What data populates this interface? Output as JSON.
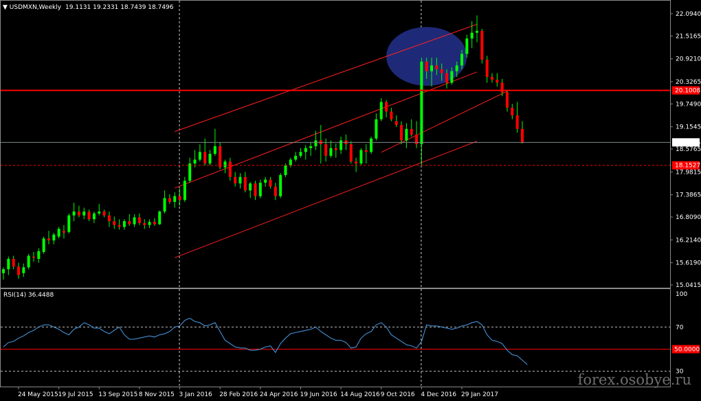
{
  "header": {
    "symbol": "USDMXN,Weekly",
    "ohlc": "19.1131 19.2331 18.7439 18.7496"
  },
  "rsi_header": "RSI(14) 36.4488",
  "watermark": "forex.osobye.ru",
  "colors": {
    "background": "#000000",
    "bull_candle": "#00ff00",
    "bear_candle": "#ff0000",
    "wick": "#00ff00",
    "channel": "#ff2020",
    "resistance": "#ff0000",
    "rsi_line": "#4a9ee8",
    "highlight_ellipse": "#1e2a78",
    "price_line": "#7f8c8d"
  },
  "chart_data": [
    {
      "type": "candlestick",
      "title": "USDMXN,Weekly",
      "y_ticks": [
        "22.0940",
        "21.5165",
        "20.9210",
        "20.3265",
        "19.7490",
        "19.1545",
        "18.5765",
        "17.9815",
        "17.3865",
        "16.8090",
        "16.2140",
        "15.6190",
        "15.0415"
      ],
      "ylim": [
        15.0415,
        22.094
      ],
      "x_ticks": [
        "24 May 2015",
        "19 Jul 2015",
        "13 Sep 2015",
        "8 Nov 2015",
        "3 Jan 2016",
        "28 Feb 2016",
        "24 Apr 2016",
        "19 Jun 2016",
        "14 Aug 2016",
        "9 Oct 2016",
        "4 Dec 2016",
        "29 Jan 2017"
      ],
      "price_labels": {
        "current": "18.7496",
        "resistance": "20.1008",
        "dashed_level": "18.1527"
      },
      "levels": {
        "current": 18.7496,
        "resistance": 20.1008,
        "dashed_level": 18.1527
      },
      "channel": {
        "upper": [
          [
            "27 Dec 2015",
            19.03
          ],
          [
            "19 Feb 2017",
            21.82
          ]
        ],
        "middle": [
          [
            "27 Dec 2015",
            17.56
          ],
          [
            "19 Feb 2017",
            20.58
          ]
        ],
        "lower": [
          [
            "27 Dec 2015",
            15.75
          ],
          [
            "19 Feb 2017",
            18.78
          ]
        ],
        "breakout": [
          [
            "9 Oct 2016",
            18.49
          ],
          [
            "2 Apr 2017",
            20.08
          ]
        ]
      },
      "vertical_markers": [
        "3 Jan 2016",
        "4 Dec 2016"
      ],
      "highlight_ellipse": {
        "from": "16 Oct 2016",
        "to": "5 Feb 2017",
        "low": 20.22,
        "high": 21.75
      },
      "candles": [
        {
          "week": "3 May 2015",
          "o": 15.35,
          "h": 15.5,
          "l": 15.18,
          "c": 15.45
        },
        {
          "week": "10 May 2015",
          "o": 15.45,
          "h": 15.78,
          "l": 15.3,
          "c": 15.72
        },
        {
          "week": "17 May 2015",
          "o": 15.72,
          "h": 15.8,
          "l": 15.45,
          "c": 15.52
        },
        {
          "week": "24 May 2015",
          "o": 15.52,
          "h": 15.62,
          "l": 15.2,
          "c": 15.3
        },
        {
          "week": "31 May 2015",
          "o": 15.35,
          "h": 15.6,
          "l": 15.25,
          "c": 15.5
        },
        {
          "week": "7 Jun 2015",
          "o": 15.5,
          "h": 15.85,
          "l": 15.45,
          "c": 15.8
        },
        {
          "week": "14 Jun 2015",
          "o": 15.78,
          "h": 15.9,
          "l": 15.65,
          "c": 15.75
        },
        {
          "week": "21 Jun 2015",
          "o": 15.72,
          "h": 16.0,
          "l": 15.62,
          "c": 15.92
        },
        {
          "week": "28 Jun 2015",
          "o": 15.9,
          "h": 16.3,
          "l": 15.85,
          "c": 16.25
        },
        {
          "week": "5 Jul 2015",
          "o": 16.25,
          "h": 16.45,
          "l": 16.1,
          "c": 16.2
        },
        {
          "week": "12 Jul 2015",
          "o": 16.2,
          "h": 16.4,
          "l": 16.1,
          "c": 16.35
        },
        {
          "week": "19 Jul 2015",
          "o": 16.3,
          "h": 16.55,
          "l": 16.25,
          "c": 16.5
        },
        {
          "week": "26 Jul 2015",
          "o": 16.45,
          "h": 16.6,
          "l": 16.25,
          "c": 16.4
        },
        {
          "week": "2 Aug 2015",
          "o": 16.42,
          "h": 16.9,
          "l": 16.38,
          "c": 16.85
        },
        {
          "week": "9 Aug 2015",
          "o": 16.85,
          "h": 17.18,
          "l": 16.7,
          "c": 16.95
        },
        {
          "week": "16 Aug 2015",
          "o": 16.95,
          "h": 17.1,
          "l": 16.8,
          "c": 16.85
        },
        {
          "week": "23 Aug 2015",
          "o": 16.85,
          "h": 17.05,
          "l": 16.75,
          "c": 16.95
        },
        {
          "week": "30 Aug 2015",
          "o": 16.95,
          "h": 17.0,
          "l": 16.7,
          "c": 16.75
        },
        {
          "week": "6 Sep 2015",
          "o": 16.75,
          "h": 16.95,
          "l": 16.65,
          "c": 16.9
        },
        {
          "week": "13 Sep 2015",
          "o": 16.9,
          "h": 17.15,
          "l": 16.85,
          "c": 16.95
        },
        {
          "week": "20 Sep 2015",
          "o": 16.95,
          "h": 17.0,
          "l": 16.8,
          "c": 16.85
        },
        {
          "week": "27 Sep 2015",
          "o": 16.85,
          "h": 16.95,
          "l": 16.55,
          "c": 16.7
        },
        {
          "week": "4 Oct 2015",
          "o": 16.7,
          "h": 16.82,
          "l": 16.5,
          "c": 16.6
        },
        {
          "week": "11 Oct 2015",
          "o": 16.6,
          "h": 16.75,
          "l": 16.48,
          "c": 16.55
        },
        {
          "week": "18 Oct 2015",
          "o": 16.55,
          "h": 16.75,
          "l": 16.48,
          "c": 16.7
        },
        {
          "week": "25 Oct 2015",
          "o": 16.7,
          "h": 16.88,
          "l": 16.58,
          "c": 16.62
        },
        {
          "week": "1 Nov 2015",
          "o": 16.62,
          "h": 16.88,
          "l": 16.55,
          "c": 16.8
        },
        {
          "week": "8 Nov 2015",
          "o": 16.8,
          "h": 16.9,
          "l": 16.6,
          "c": 16.65
        },
        {
          "week": "15 Nov 2015",
          "o": 16.65,
          "h": 16.75,
          "l": 16.5,
          "c": 16.6
        },
        {
          "week": "22 Nov 2015",
          "o": 16.6,
          "h": 16.75,
          "l": 16.52,
          "c": 16.68
        },
        {
          "week": "29 Nov 2015",
          "o": 16.68,
          "h": 16.78,
          "l": 16.58,
          "c": 16.62
        },
        {
          "week": "6 Dec 2015",
          "o": 16.62,
          "h": 16.98,
          "l": 16.6,
          "c": 16.95
        },
        {
          "week": "13 Dec 2015",
          "o": 16.95,
          "h": 17.5,
          "l": 16.9,
          "c": 17.3
        },
        {
          "week": "20 Dec 2015",
          "o": 17.3,
          "h": 17.4,
          "l": 17.15,
          "c": 17.2
        },
        {
          "week": "27 Dec 2015",
          "o": 17.2,
          "h": 17.45,
          "l": 17.05,
          "c": 17.35
        },
        {
          "week": "3 Jan 2016",
          "o": 17.35,
          "h": 17.55,
          "l": 17.1,
          "c": 17.25
        },
        {
          "week": "10 Jan 2016",
          "o": 17.25,
          "h": 17.85,
          "l": 17.2,
          "c": 17.75
        },
        {
          "week": "17 Jan 2016",
          "o": 17.75,
          "h": 18.35,
          "l": 17.7,
          "c": 18.2
        },
        {
          "week": "24 Jan 2016",
          "o": 18.2,
          "h": 18.55,
          "l": 18.1,
          "c": 18.3
        },
        {
          "week": "31 Jan 2016",
          "o": 18.3,
          "h": 18.7,
          "l": 18.25,
          "c": 18.5
        },
        {
          "week": "7 Feb 2016",
          "o": 18.5,
          "h": 18.85,
          "l": 18.15,
          "c": 18.2
        },
        {
          "week": "14 Feb 2016",
          "o": 18.2,
          "h": 18.55,
          "l": 18.15,
          "c": 18.45
        },
        {
          "week": "21 Feb 2016",
          "o": 18.45,
          "h": 19.1,
          "l": 18.4,
          "c": 18.65
        },
        {
          "week": "28 Feb 2016",
          "o": 18.65,
          "h": 18.75,
          "l": 18.05,
          "c": 18.1
        },
        {
          "week": "6 Mar 2016",
          "o": 18.1,
          "h": 18.3,
          "l": 17.95,
          "c": 18.25
        },
        {
          "week": "13 Mar 2016",
          "o": 18.25,
          "h": 18.35,
          "l": 17.75,
          "c": 17.85
        },
        {
          "week": "20 Mar 2016",
          "o": 17.85,
          "h": 17.98,
          "l": 17.6,
          "c": 17.68
        },
        {
          "week": "27 Mar 2016",
          "o": 17.68,
          "h": 17.95,
          "l": 17.55,
          "c": 17.85
        },
        {
          "week": "3 Apr 2016",
          "o": 17.85,
          "h": 17.98,
          "l": 17.45,
          "c": 17.5
        },
        {
          "week": "10 Apr 2016",
          "o": 17.5,
          "h": 17.72,
          "l": 17.3,
          "c": 17.68
        },
        {
          "week": "17 Apr 2016",
          "o": 17.68,
          "h": 17.75,
          "l": 17.25,
          "c": 17.35
        },
        {
          "week": "24 Apr 2016",
          "o": 17.35,
          "h": 17.78,
          "l": 17.3,
          "c": 17.7
        },
        {
          "week": "1 May 2016",
          "o": 17.7,
          "h": 17.85,
          "l": 17.6,
          "c": 17.78
        },
        {
          "week": "8 May 2016",
          "o": 17.78,
          "h": 17.85,
          "l": 17.55,
          "c": 17.6
        },
        {
          "week": "15 May 2016",
          "o": 17.6,
          "h": 17.7,
          "l": 17.25,
          "c": 17.35
        },
        {
          "week": "22 May 2016",
          "o": 17.35,
          "h": 17.95,
          "l": 17.3,
          "c": 17.9
        },
        {
          "week": "29 May 2016",
          "o": 17.9,
          "h": 18.2,
          "l": 17.85,
          "c": 18.15
        },
        {
          "week": "5 Jun 2016",
          "o": 18.15,
          "h": 18.35,
          "l": 18.1,
          "c": 18.3
        },
        {
          "week": "12 Jun 2016",
          "o": 18.3,
          "h": 18.5,
          "l": 18.25,
          "c": 18.4
        },
        {
          "week": "19 Jun 2016",
          "o": 18.4,
          "h": 18.6,
          "l": 18.35,
          "c": 18.5
        },
        {
          "week": "26 Jun 2016",
          "o": 18.5,
          "h": 18.68,
          "l": 18.3,
          "c": 18.6
        },
        {
          "week": "3 Jul 2016",
          "o": 18.6,
          "h": 18.75,
          "l": 18.4,
          "c": 18.65
        },
        {
          "week": "10 Jul 2016",
          "o": 18.65,
          "h": 19.05,
          "l": 18.55,
          "c": 18.8
        },
        {
          "week": "17 Jul 2016",
          "o": 18.8,
          "h": 19.2,
          "l": 18.2,
          "c": 18.7
        },
        {
          "week": "24 Jul 2016",
          "o": 18.7,
          "h": 18.85,
          "l": 18.25,
          "c": 18.4
        },
        {
          "week": "31 Jul 2016",
          "o": 18.4,
          "h": 18.8,
          "l": 18.35,
          "c": 18.6
        },
        {
          "week": "7 Aug 2016",
          "o": 18.6,
          "h": 18.72,
          "l": 18.35,
          "c": 18.55
        },
        {
          "week": "14 Aug 2016",
          "o": 18.55,
          "h": 18.9,
          "l": 18.45,
          "c": 18.8
        },
        {
          "week": "21 Aug 2016",
          "o": 18.8,
          "h": 18.95,
          "l": 18.55,
          "c": 18.7
        },
        {
          "week": "28 Aug 2016",
          "o": 18.7,
          "h": 18.78,
          "l": 18.2,
          "c": 18.25
        },
        {
          "week": "4 Sep 2016",
          "o": 18.25,
          "h": 18.35,
          "l": 17.98,
          "c": 18.2
        },
        {
          "week": "11 Sep 2016",
          "o": 18.2,
          "h": 18.6,
          "l": 18.15,
          "c": 18.55
        },
        {
          "week": "18 Sep 2016",
          "o": 18.55,
          "h": 18.7,
          "l": 18.2,
          "c": 18.5
        },
        {
          "week": "25 Sep 2016",
          "o": 18.5,
          "h": 18.9,
          "l": 18.45,
          "c": 18.85
        },
        {
          "week": "2 Oct 2016",
          "o": 18.85,
          "h": 19.5,
          "l": 18.8,
          "c": 19.35
        },
        {
          "week": "9 Oct 2016",
          "o": 19.35,
          "h": 19.9,
          "l": 19.3,
          "c": 19.8
        },
        {
          "week": "16 Oct 2016",
          "o": 19.8,
          "h": 19.85,
          "l": 19.4,
          "c": 19.55
        },
        {
          "week": "23 Oct 2016",
          "o": 19.55,
          "h": 19.65,
          "l": 19.3,
          "c": 19.35
        },
        {
          "week": "30 Oct 2016",
          "o": 19.3,
          "h": 19.45,
          "l": 19.15,
          "c": 19.2
        },
        {
          "week": "6 Nov 2016",
          "o": 19.2,
          "h": 19.3,
          "l": 18.7,
          "c": 18.8
        },
        {
          "week": "13 Nov 2016",
          "o": 18.8,
          "h": 19.25,
          "l": 18.6,
          "c": 19.1
        },
        {
          "week": "20 Nov 2016",
          "o": 19.1,
          "h": 19.35,
          "l": 18.9,
          "c": 18.95
        },
        {
          "week": "27 Nov 2016",
          "o": 18.95,
          "h": 19.3,
          "l": 18.6,
          "c": 18.7
        },
        {
          "week": "4 Dec 2016",
          "o": 18.7,
          "h": 20.95,
          "l": 18.15,
          "c": 20.85
        },
        {
          "week": "11 Dec 2016",
          "o": 20.85,
          "h": 20.95,
          "l": 20.4,
          "c": 20.6
        },
        {
          "week": "18 Dec 2016",
          "o": 20.6,
          "h": 20.95,
          "l": 20.2,
          "c": 20.75
        },
        {
          "week": "25 Dec 2016",
          "o": 20.75,
          "h": 20.95,
          "l": 20.5,
          "c": 20.65
        },
        {
          "week": "1 Jan 2017",
          "o": 20.65,
          "h": 20.8,
          "l": 20.35,
          "c": 20.55
        },
        {
          "week": "8 Jan 2017",
          "o": 20.55,
          "h": 20.65,
          "l": 20.15,
          "c": 20.3
        },
        {
          "week": "15 Jan 2017",
          "o": 20.3,
          "h": 20.7,
          "l": 20.25,
          "c": 20.6
        },
        {
          "week": "22 Jan 2017",
          "o": 20.6,
          "h": 20.85,
          "l": 20.45,
          "c": 20.75
        },
        {
          "week": "29 Jan 2017",
          "o": 20.75,
          "h": 21.15,
          "l": 20.65,
          "c": 21.05
        },
        {
          "week": "5 Feb 2017",
          "o": 21.05,
          "h": 21.55,
          "l": 20.95,
          "c": 21.45
        },
        {
          "week": "12 Feb 2017",
          "o": 21.45,
          "h": 21.9,
          "l": 21.2,
          "c": 21.6
        },
        {
          "week": "19 Feb 2017",
          "o": 21.6,
          "h": 22.05,
          "l": 21.35,
          "c": 21.65
        },
        {
          "week": "26 Feb 2017",
          "o": 21.65,
          "h": 21.7,
          "l": 20.8,
          "c": 20.9
        },
        {
          "week": "5 Mar 2017",
          "o": 20.9,
          "h": 21.0,
          "l": 20.3,
          "c": 20.45
        },
        {
          "week": "12 Mar 2017",
          "o": 20.45,
          "h": 20.55,
          "l": 20.3,
          "c": 20.38
        },
        {
          "week": "19 Mar 2017",
          "o": 20.38,
          "h": 20.55,
          "l": 20.2,
          "c": 20.3
        },
        {
          "week": "26 Mar 2017",
          "o": 20.3,
          "h": 20.4,
          "l": 19.95,
          "c": 20.05
        },
        {
          "week": "2 Apr 2017",
          "o": 20.05,
          "h": 20.1,
          "l": 19.55,
          "c": 19.65
        },
        {
          "week": "9 Apr 2017",
          "o": 19.65,
          "h": 19.75,
          "l": 19.35,
          "c": 19.45
        },
        {
          "week": "16 Apr 2017",
          "o": 19.45,
          "h": 19.8,
          "l": 19.0,
          "c": 19.1
        },
        {
          "week": "23 Apr 2017",
          "o": 19.1,
          "h": 19.3,
          "l": 18.72,
          "c": 18.75
        }
      ]
    },
    {
      "type": "line",
      "title": "RSI(14) 36.4488",
      "y_ticks": [
        "100",
        "70",
        "50.0000",
        "30"
      ],
      "ylim": [
        18,
        100
      ],
      "levels": [
        70,
        50,
        30
      ],
      "level_label": "50.0000",
      "values": [
        52,
        56,
        57,
        60,
        62,
        65,
        67,
        70,
        72,
        72,
        70,
        68,
        65,
        63,
        68,
        70,
        74,
        72,
        69,
        69,
        66,
        64,
        67,
        70,
        63,
        59,
        59,
        60,
        61,
        62,
        61,
        63,
        64,
        66,
        70,
        71,
        76,
        78,
        75,
        74,
        71,
        72,
        74,
        66,
        58,
        55,
        52,
        51,
        51,
        49,
        49,
        50,
        52,
        53,
        47,
        55,
        60,
        64,
        65,
        66,
        67,
        68,
        70,
        66,
        63,
        60,
        58,
        58,
        56,
        51,
        52,
        60,
        64,
        66,
        72,
        74,
        70,
        63,
        60,
        57,
        54,
        53,
        51,
        57,
        72,
        71,
        71,
        70,
        69,
        68,
        69,
        71,
        72,
        74,
        75,
        72,
        63,
        58,
        57,
        55,
        49,
        45,
        44,
        40,
        36
      ]
    }
  ]
}
